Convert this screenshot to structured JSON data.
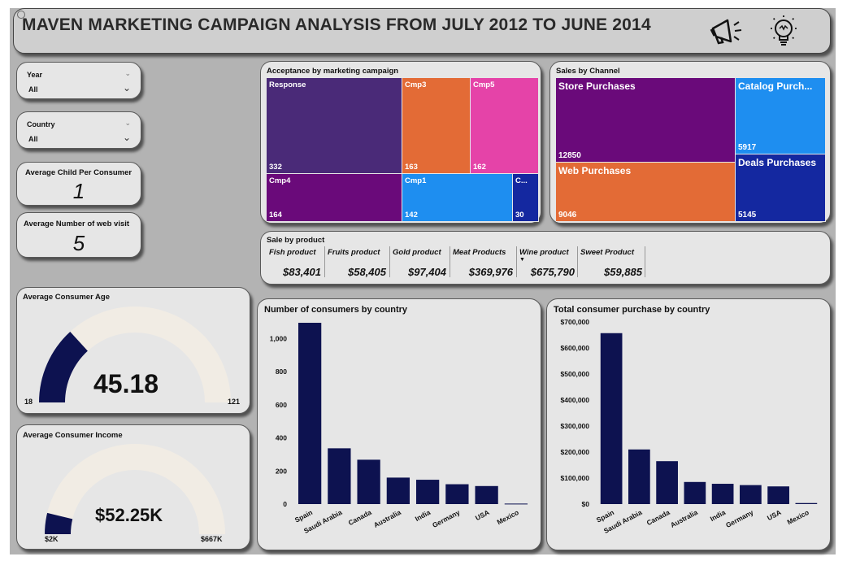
{
  "header": {
    "title": "MAVEN MARKETING CAMPAIGN ANALYSIS FROM JULY 2012 TO JUNE 2014",
    "icons": [
      "megaphone-icon",
      "lightbulb-icon"
    ]
  },
  "filters": {
    "year": {
      "label": "Year",
      "value": "All"
    },
    "country": {
      "label": "Country",
      "value": "All"
    }
  },
  "kpis": {
    "child_per_consumer": {
      "label": "Average Child Per Consumer",
      "value": "1"
    },
    "web_visits": {
      "label": "Average Number of web visit",
      "value": "5"
    }
  },
  "campaign_acceptance": {
    "title": "Acceptance by marketing campaign",
    "items": [
      {
        "name": "Response",
        "value": "332",
        "color": "#4a2a78"
      },
      {
        "name": "Cmp3",
        "value": "163",
        "color": "#e36b36"
      },
      {
        "name": "Cmp5",
        "value": "162",
        "color": "#e543a8"
      },
      {
        "name": "Cmp4",
        "value": "164",
        "color": "#6a0a7a"
      },
      {
        "name": "Cmp1",
        "value": "142",
        "color": "#1e8ef0"
      },
      {
        "name": "C...",
        "value": "30",
        "color": "#1428a0"
      }
    ]
  },
  "sales_channel": {
    "title": "Sales by Channel",
    "items": [
      {
        "name": "Store Purchases",
        "value": "12850",
        "color": "#6a0a7a"
      },
      {
        "name": "Catalog Purch...",
        "value": "5917",
        "color": "#1e8ef0"
      },
      {
        "name": "Web Purchases",
        "value": "9046",
        "color": "#e36b36"
      },
      {
        "name": "Deals Purchases",
        "value": "5145",
        "color": "#1428a0"
      }
    ]
  },
  "sale_by_product": {
    "title": "Sale by product",
    "columns": [
      "Fish product",
      "Fruits product",
      "Gold product",
      "Meat Products",
      "Wine product",
      "Sweet Product"
    ],
    "values": [
      "$83,401",
      "$58,405",
      "$97,404",
      "$369,976",
      "$675,790",
      "$59,885"
    ]
  },
  "gauges": {
    "age": {
      "label": "Average Consumer Age",
      "value": "45.18",
      "min": "18",
      "max": "121",
      "fraction": 0.2639
    },
    "income": {
      "label": "Average Consumer Income",
      "value": "$52.25K",
      "min": "$2K",
      "max": "$667K",
      "fraction": 0.0756
    }
  },
  "colors": {
    "bar": "#0d1250",
    "gauge_fill": "#0d1250",
    "gauge_track": "#f1ece4"
  },
  "chart_data": [
    {
      "type": "bar",
      "title": "Number of consumers by country",
      "categories": [
        "Spain",
        "Saudi Arabia",
        "Canada",
        "Australia",
        "India",
        "Germany",
        "USA",
        "Mexico"
      ],
      "values": [
        1095,
        337,
        268,
        160,
        147,
        120,
        109,
        3
      ],
      "ylim": [
        0,
        1100
      ],
      "yticks": [
        0,
        200,
        400,
        600,
        800,
        1000
      ],
      "ytick_labels": [
        "0",
        "200",
        "400",
        "600",
        "800",
        "1,000"
      ]
    },
    {
      "type": "bar",
      "title": "Total consumer purchase by country",
      "categories": [
        "Spain",
        "Saudi Arabia",
        "Canada",
        "Australia",
        "India",
        "Germany",
        "USA",
        "Mexico"
      ],
      "values": [
        657000,
        210000,
        165000,
        85000,
        78000,
        73000,
        68000,
        4000
      ],
      "ylim": [
        0,
        700000
      ],
      "yticks": [
        0,
        100000,
        200000,
        300000,
        400000,
        500000,
        600000,
        700000
      ],
      "ytick_labels": [
        "$0",
        "$100,000",
        "$200,000",
        "$300,000",
        "$400,000",
        "$500,000",
        "$600,000",
        "$700,000"
      ]
    }
  ]
}
